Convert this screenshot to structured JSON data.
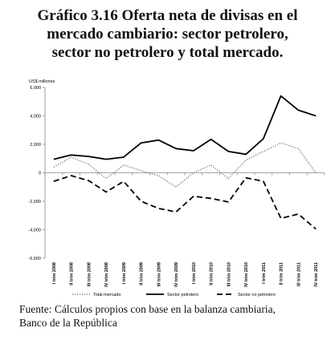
{
  "title_lines": [
    "Gráfico 3.16 Oferta neta de divisas en el",
    "mercado cambiario: sector petrolero,",
    "sector no petrolero y total mercado."
  ],
  "source_lines": [
    "Fuente: Cálculos propios con base en  la balanza cambiaria,",
    "Banco de la República"
  ],
  "chart_data": {
    "type": "line",
    "ylabel": "US$ millones",
    "ylim": [
      -6000,
      6000
    ],
    "yticks": [
      -6000,
      -4000,
      -2000,
      0,
      2000,
      4000,
      6000
    ],
    "ytick_labels": [
      "-6,000",
      "-4,000",
      "-2,000",
      "0",
      "2,000",
      "4,000",
      "6,000"
    ],
    "categories": [
      "I trim 2008",
      "II trim 2008",
      "III trim 2008",
      "IV trim 2008",
      "I trim 2009",
      "II trim 2009",
      "III trim 2009",
      "IV trim 2009",
      "I trim 2010",
      "II trim 2010",
      "III trim 2010",
      "IV trim 2010",
      "I trim 2011",
      "II trim 2011",
      "III trim 2011",
      "IV trim 2011"
    ],
    "grid": false,
    "legend_position": "bottom",
    "series": [
      {
        "name": "Total mercado",
        "style": "dotted",
        "color": "#666666",
        "values": [
          400,
          1100,
          600,
          -400,
          550,
          150,
          -200,
          -1000,
          0,
          550,
          -400,
          900,
          1500,
          2100,
          1700,
          0
        ]
      },
      {
        "name": "Sector petrolero",
        "style": "solid",
        "color": "#000000",
        "values": [
          950,
          1250,
          1150,
          950,
          1100,
          2100,
          2300,
          1700,
          1550,
          2350,
          1500,
          1300,
          2400,
          5400,
          4400,
          4000
        ]
      },
      {
        "name": "Sector no petrolero",
        "style": "dashed",
        "color": "#000000",
        "values": [
          -600,
          -200,
          -550,
          -1350,
          -600,
          -2000,
          -2500,
          -2750,
          -1650,
          -1800,
          -2050,
          -350,
          -600,
          -3200,
          -2900,
          -3950
        ]
      }
    ]
  }
}
